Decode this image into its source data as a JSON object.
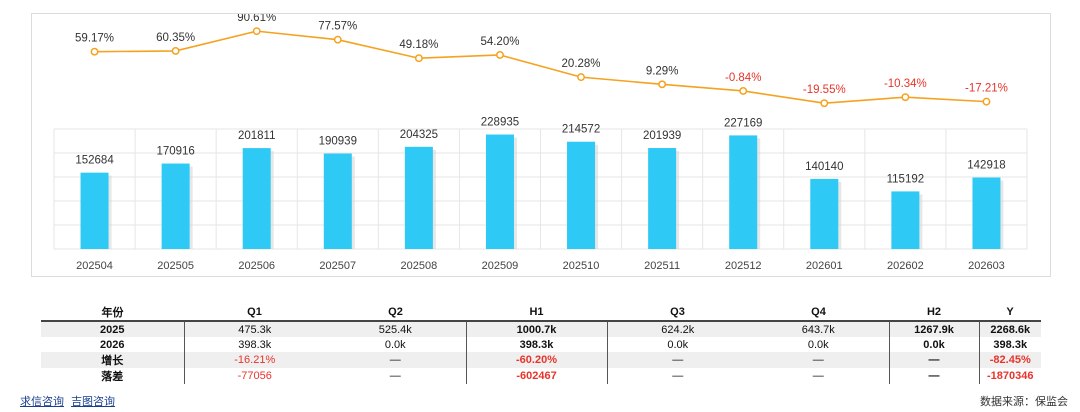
{
  "chart_data": {
    "type": "bar+line",
    "categories": [
      "202504",
      "202505",
      "202506",
      "202507",
      "202508",
      "202509",
      "202510",
      "202511",
      "202512",
      "202601",
      "202602",
      "202603"
    ],
    "bars": {
      "name": "value",
      "values": [
        152684,
        170916,
        201811,
        190939,
        204325,
        228935,
        214572,
        201939,
        227169,
        140140,
        115192,
        142918
      ],
      "ylim": [
        0,
        240000
      ],
      "color": "#2ec9f5"
    },
    "line": {
      "name": "growth",
      "values": [
        59.17,
        60.35,
        90.61,
        77.57,
        49.18,
        54.2,
        20.28,
        9.29,
        -0.84,
        -19.55,
        -10.34,
        -17.21
      ],
      "labels": [
        "59.17%",
        "60.35%",
        "90.61%",
        "77.57%",
        "49.18%",
        "54.20%",
        "20.28%",
        "9.29%",
        "-0.84%",
        "-19.55%",
        "-10.34%",
        "-17.21%"
      ],
      "color": "#f5a21f",
      "negative_color": "#e8342b"
    },
    "grid": true
  },
  "table": {
    "headers": [
      "年份",
      "Q1",
      "Q2",
      "H1",
      "Q3",
      "Q4",
      "H2",
      "Y"
    ],
    "rows": [
      {
        "label": "2025",
        "cells": [
          "475.3k",
          "525.4k",
          "1000.7k",
          "624.2k",
          "643.7k",
          "1267.9k",
          "2268.6k"
        ]
      },
      {
        "label": "2026",
        "cells": [
          "398.3k",
          "0.0k",
          "398.3k",
          "0.0k",
          "0.0k",
          "0.0k",
          "398.3k"
        ]
      },
      {
        "label": "增长",
        "cells": [
          "-16.21%",
          "—",
          "-60.20%",
          "—",
          "—",
          "—",
          "-82.45%"
        ]
      },
      {
        "label": "落差",
        "cells": [
          "-77056",
          "—",
          "-602467",
          "—",
          "—",
          "—",
          "-1870346"
        ]
      }
    ]
  },
  "footer": {
    "links": [
      "求信咨询",
      "吉图咨询"
    ],
    "source": "数据来源：保监会"
  }
}
